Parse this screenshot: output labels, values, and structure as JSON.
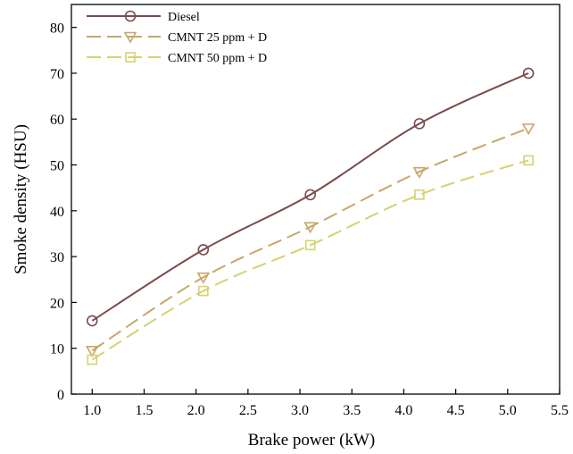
{
  "chart_data": {
    "type": "line",
    "title": "",
    "xlabel": "Brake power (kW)",
    "ylabel": "Smoke density (HSU)",
    "xlim": [
      0.8,
      5.5
    ],
    "ylim": [
      0,
      85
    ],
    "xticks": [
      1.0,
      1.5,
      2.0,
      2.5,
      3.0,
      3.5,
      4.0,
      4.5,
      5.0,
      5.5
    ],
    "xtick_labels": [
      "1.0",
      "1.5",
      "2.0",
      "2.5",
      "3.0",
      "3.5",
      "4.0",
      "4.5",
      "5.0",
      "5.5"
    ],
    "yticks": [
      0,
      10,
      20,
      30,
      40,
      50,
      60,
      70,
      80
    ],
    "ytick_labels": [
      "0",
      "10",
      "20",
      "30",
      "40",
      "50",
      "60",
      "70",
      "80"
    ],
    "grid": false,
    "legend_position": "top-left",
    "x": [
      1.0,
      2.07,
      3.1,
      4.15,
      5.2
    ],
    "series": [
      {
        "name": "Diesel",
        "values": [
          16,
          31.5,
          43.5,
          59,
          70
        ],
        "color": "#7a4a4a",
        "marker": "circle",
        "dash": "solid"
      },
      {
        "name": "CMNT 25 ppm + D",
        "values": [
          9.5,
          25.5,
          36.5,
          48.5,
          58
        ],
        "color": "#c8a66a",
        "marker": "triangle-down",
        "dash": "dashed"
      },
      {
        "name": "CMNT 50 ppm + D",
        "values": [
          7.5,
          22.5,
          32.5,
          43.5,
          51
        ],
        "color": "#d6d270",
        "marker": "square",
        "dash": "dashed"
      }
    ]
  }
}
